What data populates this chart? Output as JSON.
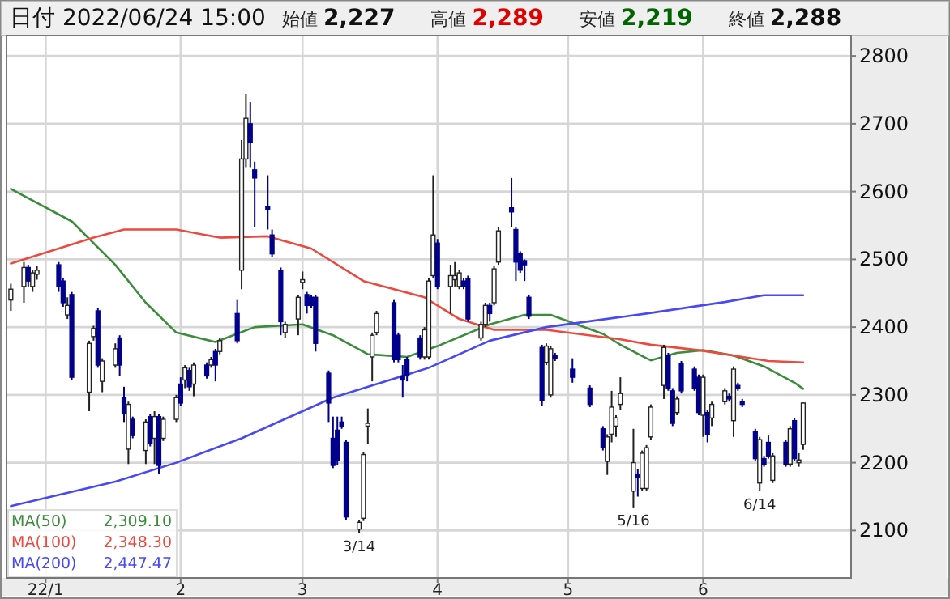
{
  "chart_data": {
    "type": "candlestick",
    "title": "日付 2022/06/24 15:00",
    "annotations": [
      "始値 2,227",
      "高値 2,289",
      "安値 2,219",
      "終値 2,288",
      {
        "text": "3/14",
        "x": "2022-03-14",
        "y": 2096
      },
      {
        "text": "5/16",
        "x": "2022-05-16",
        "y": 2134
      },
      {
        "text": "6/14",
        "x": "2022-06-14",
        "y": 2158
      },
      "2,309.10",
      "2,348.30",
      "2,447.47"
    ],
    "x": [
      "2021-12-24",
      "2021-12-27",
      "2021-12-28",
      "2021-12-29",
      "2021-12-30",
      "2022-01-04",
      "2022-01-05",
      "2022-01-06",
      "2022-01-07",
      "2022-01-11",
      "2022-01-12",
      "2022-01-13",
      "2022-01-14",
      "2022-01-17",
      "2022-01-18",
      "2022-01-19",
      "2022-01-20",
      "2022-01-21",
      "2022-01-24",
      "2022-01-25",
      "2022-01-26",
      "2022-01-27",
      "2022-01-28",
      "2022-01-31",
      "2022-02-01",
      "2022-02-02",
      "2022-02-03",
      "2022-02-04",
      "2022-02-07",
      "2022-02-08",
      "2022-02-09",
      "2022-02-10",
      "2022-02-14",
      "2022-02-15",
      "2022-02-16",
      "2022-02-17",
      "2022-02-18",
      "2022-02-21",
      "2022-02-22",
      "2022-02-24",
      "2022-02-25",
      "2022-02-28",
      "2022-03-01",
      "2022-03-02",
      "2022-03-03",
      "2022-03-04",
      "2022-03-07",
      "2022-03-08",
      "2022-03-09",
      "2022-03-10",
      "2022-03-11",
      "2022-03-14",
      "2022-03-15",
      "2022-03-16",
      "2022-03-17",
      "2022-03-18",
      "2022-03-22",
      "2022-03-23",
      "2022-03-24",
      "2022-03-25",
      "2022-03-28",
      "2022-03-29",
      "2022-03-30",
      "2022-03-31",
      "2022-04-01",
      "2022-04-04",
      "2022-04-05",
      "2022-04-06",
      "2022-04-07",
      "2022-04-08",
      "2022-04-11",
      "2022-04-12",
      "2022-04-13",
      "2022-04-14",
      "2022-04-15",
      "2022-04-18",
      "2022-04-19",
      "2022-04-20",
      "2022-04-21",
      "2022-04-22",
      "2022-04-25",
      "2022-04-26",
      "2022-04-27",
      "2022-04-28",
      "2022-05-02",
      "2022-05-06",
      "2022-05-09",
      "2022-05-10",
      "2022-05-11",
      "2022-05-12",
      "2022-05-13",
      "2022-05-16",
      "2022-05-17",
      "2022-05-18",
      "2022-05-19",
      "2022-05-20",
      "2022-05-23",
      "2022-05-24",
      "2022-05-25",
      "2022-05-26",
      "2022-05-27",
      "2022-05-30",
      "2022-05-31",
      "2022-06-01",
      "2022-06-02",
      "2022-06-03",
      "2022-06-06",
      "2022-06-07",
      "2022-06-08",
      "2022-06-09",
      "2022-06-10",
      "2022-06-13",
      "2022-06-14",
      "2022-06-15",
      "2022-06-16",
      "2022-06-17",
      "2022-06-20",
      "2022-06-21",
      "2022-06-22",
      "2022-06-23",
      "2022-06-24"
    ],
    "ohlc": [
      [
        2440,
        2464,
        2424,
        2456
      ],
      [
        2460,
        2496,
        2436,
        2488
      ],
      [
        2488,
        2492,
        2460,
        2468
      ],
      [
        2460,
        2484,
        2452,
        2480
      ],
      [
        2478,
        2490,
        2470,
        2484
      ],
      [
        2492,
        2496,
        2452,
        2460
      ],
      [
        2468,
        2472,
        2430,
        2436
      ],
      [
        2418,
        2444,
        2412,
        2432
      ],
      [
        2448,
        2452,
        2322,
        2326
      ],
      [
        2304,
        2380,
        2276,
        2376
      ],
      [
        2386,
        2402,
        2380,
        2398
      ],
      [
        2424,
        2428,
        2340,
        2344
      ],
      [
        2320,
        2354,
        2304,
        2350
      ],
      [
        2344,
        2376,
        2340,
        2368
      ],
      [
        2384,
        2388,
        2328,
        2344
      ],
      [
        2296,
        2312,
        2260,
        2272
      ],
      [
        2220,
        2290,
        2198,
        2286
      ],
      [
        2264,
        2268,
        2236,
        2240
      ],
      [
        2218,
        2264,
        2198,
        2260
      ],
      [
        2268,
        2272,
        2224,
        2228
      ],
      [
        2236,
        2276,
        2198,
        2268
      ],
      [
        2268,
        2272,
        2184,
        2196
      ],
      [
        2236,
        2268,
        2232,
        2264
      ],
      [
        2264,
        2300,
        2260,
        2296
      ],
      [
        2316,
        2326,
        2284,
        2288
      ],
      [
        2322,
        2344,
        2310,
        2340
      ],
      [
        2336,
        2340,
        2306,
        2312
      ],
      [
        2316,
        2348,
        2298,
        2344
      ],
      [
        2344,
        2348,
        2324,
        2328
      ],
      [
        2344,
        2356,
        2340,
        2352
      ],
      [
        2364,
        2368,
        2320,
        2344
      ],
      [
        2364,
        2384,
        2360,
        2380
      ],
      [
        2420,
        2440,
        2376,
        2380
      ],
      [
        2484,
        2676,
        2456,
        2648
      ],
      [
        2648,
        2744,
        2636,
        2708
      ],
      [
        2700,
        2732,
        2636,
        2672
      ],
      [
        2632,
        2644,
        2548,
        2620
      ],
      [
        2578,
        2624,
        2544,
        2574
      ],
      [
        2536,
        2544,
        2504,
        2508
      ],
      [
        2484,
        2488,
        2388,
        2408
      ],
      [
        2392,
        2408,
        2384,
        2404
      ],
      [
        2412,
        2448,
        2388,
        2444
      ],
      [
        2466,
        2482,
        2456,
        2470
      ],
      [
        2448,
        2452,
        2420,
        2432
      ],
      [
        2444,
        2448,
        2428,
        2432
      ],
      [
        2444,
        2448,
        2364,
        2376
      ],
      [
        2332,
        2336,
        2260,
        2288
      ],
      [
        2236,
        2268,
        2192,
        2196
      ],
      [
        2248,
        2268,
        2196,
        2204
      ],
      [
        2260,
        2268,
        2250,
        2254
      ],
      [
        2230,
        2234,
        2116,
        2120
      ],
      [
        2102,
        2116,
        2096,
        2112
      ],
      [
        2118,
        2216,
        2114,
        2212
      ],
      [
        2254,
        2280,
        2228,
        2258
      ],
      [
        2356,
        2392,
        2320,
        2388
      ],
      [
        2392,
        2424,
        2388,
        2420
      ],
      [
        2436,
        2440,
        2348,
        2352
      ],
      [
        2388,
        2392,
        2348,
        2352
      ],
      [
        2328,
        2344,
        2296,
        2322
      ],
      [
        2352,
        2356,
        2320,
        2328
      ],
      [
        2384,
        2388,
        2352,
        2356
      ],
      [
        2356,
        2400,
        2352,
        2396
      ],
      [
        2356,
        2472,
        2352,
        2468
      ],
      [
        2476,
        2624,
        2472,
        2536
      ],
      [
        2524,
        2530,
        2456,
        2460
      ],
      [
        2460,
        2492,
        2420,
        2476
      ],
      [
        2470,
        2496,
        2460,
        2476
      ],
      [
        2460,
        2484,
        2456,
        2480
      ],
      [
        2468,
        2472,
        2456,
        2460
      ],
      [
        2472,
        2476,
        2408,
        2412
      ],
      [
        2384,
        2408,
        2380,
        2404
      ],
      [
        2404,
        2436,
        2400,
        2432
      ],
      [
        2432,
        2436,
        2408,
        2420
      ],
      [
        2436,
        2490,
        2432,
        2486
      ],
      [
        2496,
        2548,
        2492,
        2542
      ],
      [
        2576,
        2620,
        2548,
        2570
      ],
      [
        2544,
        2548,
        2468,
        2496
      ],
      [
        2508,
        2512,
        2480,
        2484
      ],
      [
        2498,
        2500,
        2468,
        2492
      ],
      [
        2444,
        2448,
        2412,
        2416
      ],
      [
        2370,
        2374,
        2284,
        2292
      ],
      [
        2348,
        2376,
        2344,
        2372
      ],
      [
        2300,
        2372,
        2296,
        2368
      ],
      [
        2358,
        2362,
        2350,
        2354
      ],
      [
        2338,
        2354,
        2318,
        2326
      ],
      [
        2310,
        2314,
        2282,
        2286
      ],
      [
        2250,
        2254,
        2218,
        2222
      ],
      [
        2202,
        2242,
        2182,
        2238
      ],
      [
        2242,
        2306,
        2230,
        2282
      ],
      [
        2254,
        2270,
        2238,
        2266
      ],
      [
        2286,
        2326,
        2278,
        2302
      ],
      [
        2158,
        2250,
        2134,
        2200
      ],
      [
        2182,
        2190,
        2150,
        2178
      ],
      [
        2162,
        2218,
        2158,
        2214
      ],
      [
        2162,
        2226,
        2158,
        2222
      ],
      [
        2238,
        2286,
        2234,
        2282
      ],
      [
        2314,
        2374,
        2294,
        2370
      ],
      [
        2358,
        2362,
        2306,
        2310
      ],
      [
        2306,
        2310,
        2254,
        2258
      ],
      [
        2274,
        2298,
        2270,
        2294
      ],
      [
        2346,
        2350,
        2302,
        2306
      ],
      [
        2338,
        2342,
        2306,
        2310
      ],
      [
        2326,
        2330,
        2270,
        2274
      ],
      [
        2270,
        2330,
        2238,
        2326
      ],
      [
        2274,
        2278,
        2230,
        2242
      ],
      [
        2266,
        2290,
        2254,
        2286
      ],
      [
        2290,
        2310,
        2286,
        2306
      ],
      [
        2298,
        2302,
        2290,
        2294
      ],
      [
        2262,
        2342,
        2238,
        2338
      ],
      [
        2314,
        2318,
        2306,
        2310
      ],
      [
        2290,
        2294,
        2282,
        2286
      ],
      [
        2246,
        2250,
        2202,
        2206
      ],
      [
        2170,
        2238,
        2158,
        2234
      ],
      [
        2206,
        2210,
        2194,
        2198
      ],
      [
        2230,
        2240,
        2206,
        2210
      ],
      [
        2174,
        2214,
        2170,
        2210
      ],
      [
        2230,
        2234,
        2194,
        2198
      ],
      [
        2198,
        2254,
        2194,
        2250
      ],
      [
        2262,
        2266,
        2202,
        2206
      ],
      [
        2200,
        2214,
        2194,
        2204
      ],
      [
        2227,
        2289,
        2219,
        2288
      ]
    ],
    "series": [
      {
        "name": "MA(50)",
        "type": "line",
        "color": "#3c8c3c",
        "x": [
          "2021-12-24",
          "2022-01-07",
          "2022-01-17",
          "2022-01-24",
          "2022-01-31",
          "2022-02-09",
          "2022-02-18",
          "2022-03-01",
          "2022-03-08",
          "2022-03-16",
          "2022-03-25",
          "2022-04-01",
          "2022-04-13",
          "2022-04-21",
          "2022-04-27",
          "2022-05-09",
          "2022-05-13",
          "2022-05-19",
          "2022-05-20",
          "2022-05-26",
          "2022-06-01",
          "2022-06-08",
          "2022-06-15",
          "2022-06-22",
          "2022-06-24"
        ],
        "values": [
          2604,
          2556,
          2492,
          2436,
          2392,
          2378,
          2400,
          2404,
          2388,
          2360,
          2356,
          2372,
          2404,
          2418,
          2418,
          2390,
          2374,
          2354,
          2351,
          2362,
          2366,
          2358,
          2342,
          2318,
          2309
        ]
      },
      {
        "name": "MA(100)",
        "type": "line",
        "color": "#ec4a40",
        "x": [
          "2021-12-24",
          "2022-01-12",
          "2022-01-19",
          "2022-01-31",
          "2022-02-10",
          "2022-02-21",
          "2022-03-03",
          "2022-03-15",
          "2022-03-29",
          "2022-04-06",
          "2022-04-14",
          "2022-04-26",
          "2022-05-13",
          "2022-05-20",
          "2022-05-31",
          "2022-06-08",
          "2022-06-16",
          "2022-06-24"
        ],
        "values": [
          2494,
          2532,
          2544,
          2544,
          2532,
          2534,
          2516,
          2468,
          2444,
          2412,
          2396,
          2396,
          2382,
          2374,
          2366,
          2358,
          2350,
          2348
        ]
      },
      {
        "name": "MA(200)",
        "type": "line",
        "color": "#4848f4",
        "x": [
          "2021-12-24",
          "2022-01-17",
          "2022-01-31",
          "2022-02-15",
          "2022-03-01",
          "2022-03-08",
          "2022-03-30",
          "2022-04-13",
          "2022-04-26",
          "2022-05-19",
          "2022-06-06",
          "2022-06-15",
          "2022-06-24"
        ],
        "values": [
          2136,
          2172,
          2200,
          2236,
          2276,
          2296,
          2340,
          2380,
          2400,
          2420,
          2437,
          2447,
          2447
        ]
      }
    ],
    "xlim": [
      "2021-12-23",
      "2022-07-05"
    ],
    "xticks": [
      {
        "value": "2022-01-01",
        "label": "22/1"
      },
      {
        "value": "2022-02-01",
        "label": "2"
      },
      {
        "value": "2022-03-01",
        "label": "3"
      },
      {
        "value": "2022-04-01",
        "label": "4"
      },
      {
        "value": "2022-05-01",
        "label": "5"
      },
      {
        "value": "2022-06-01",
        "label": "6"
      }
    ],
    "ylim": [
      2030,
      2830
    ],
    "yticks": [
      2100,
      2200,
      2300,
      2400,
      2500,
      2600,
      2700,
      2800
    ],
    "grid": true,
    "legend": "bottom left"
  }
}
